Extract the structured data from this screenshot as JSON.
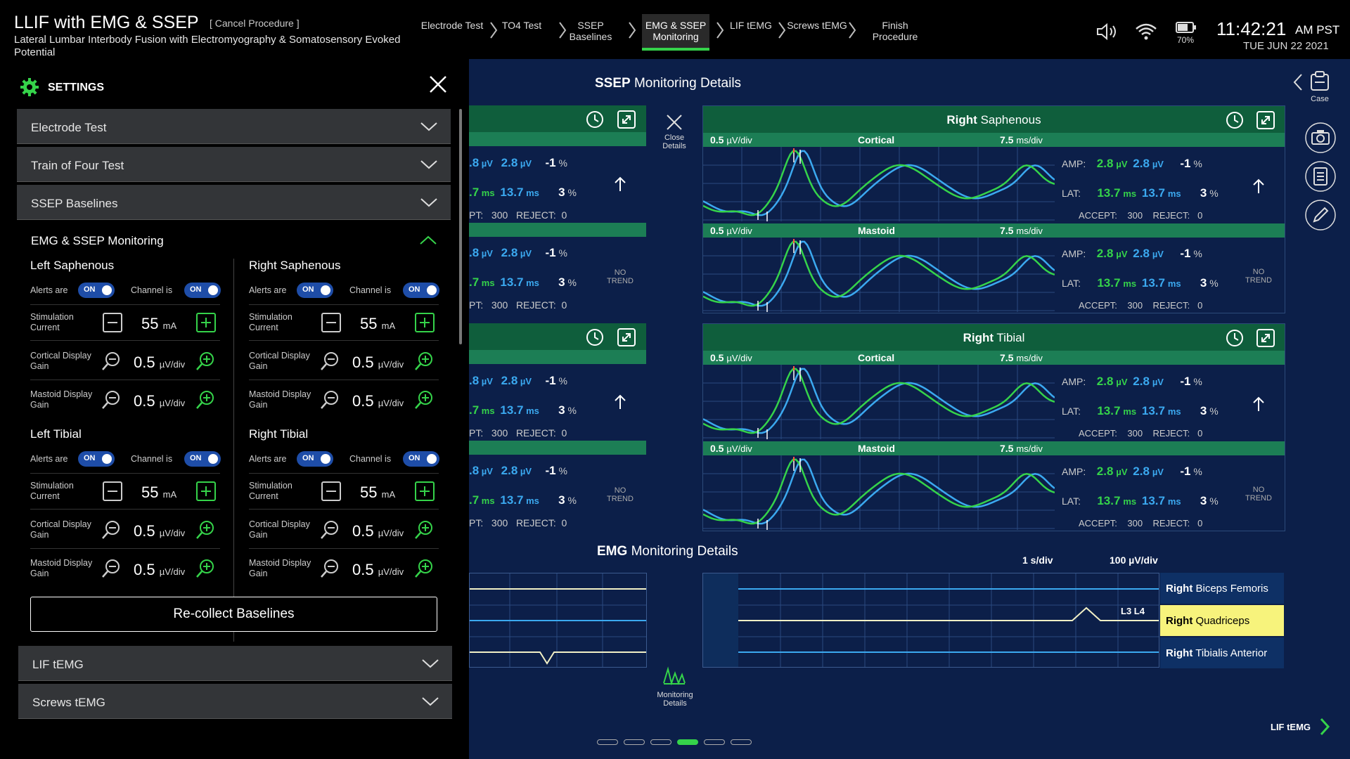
{
  "header": {
    "title": "LLIF with EMG & SSEP",
    "cancel": "[ Cancel Procedure ]",
    "subtitle": "Lateral Lumbar Interbody Fusion with Electromyography & Somatosensory Evoked Potential"
  },
  "steps": [
    {
      "label": "Electrode Test"
    },
    {
      "label": "TO4 Test"
    },
    {
      "label": "SSEP Baselines"
    },
    {
      "label": "EMG & SSEP Monitoring",
      "active": true
    },
    {
      "label": "LIF tEMG"
    },
    {
      "label": "Screws tEMG"
    },
    {
      "label": "Finish Procedure"
    }
  ],
  "status": {
    "battery": "70%",
    "time": "11:42:21",
    "ampm": "AM PST",
    "date": "TUE  JUN 22  2021"
  },
  "settings": {
    "title": "SETTINGS",
    "sections": [
      "Electrode Test",
      "Train of Four Test",
      "SSEP Baselines"
    ],
    "emg_ssep": "EMG & SSEP Monitoring",
    "groups": [
      {
        "title_a": "Left",
        "title_b": "Saphenous"
      },
      {
        "title_a": "Right",
        "title_b": "Saphenous"
      },
      {
        "title_a": "Left",
        "title_b": "Tibial"
      },
      {
        "title_a": "Right",
        "title_b": "Tibial"
      }
    ],
    "alerts_label": "Alerts are",
    "channel_label": "Channel is",
    "toggle_on": "ON",
    "stim_label": "Stimulation Current",
    "stim_value": "55",
    "stim_unit": "mA",
    "cortical_label": "Cortical Display Gain",
    "mastoid_label": "Mastoid Display Gain",
    "gain_value": "0.5",
    "gain_unit": "µV/div",
    "recollect": "Re-collect Baselines",
    "bottom_sections": [
      "LIF tEMG",
      "Screws tEMG"
    ]
  },
  "ssep": {
    "heading_bold": "SSEP",
    "heading": "Monitoring Details",
    "close": "Close Details",
    "panels": [
      {
        "title_a": "Right",
        "title_b": "Saphenous"
      },
      {
        "title_a": "Right",
        "title_b": "Tibial"
      }
    ],
    "scale": "0.5",
    "scale_unit": "µV/div",
    "time": "7.5",
    "time_unit": "ms/div",
    "cortical": "Cortical",
    "mastoid": "Mastoid",
    "amp_label": "AMP:",
    "lat_label": "LAT:",
    "amp1": "2.8",
    "amp2": "2.8",
    "amp_unit": "µV",
    "amp_pct": "-1",
    "lat1": "13.7",
    "lat2": "13.7",
    "lat_unit": "ms",
    "lat_pct": "3",
    "pct": "%",
    "accept_label": "ACCEPT:",
    "accept": "300",
    "reject_label": "REJECT:",
    "reject": "0",
    "left_amp1": ".8",
    "left_lat1": ".7",
    "left_accept_label": "PT:",
    "no_trend": "NO TREND"
  },
  "emg": {
    "heading_bold": "EMG",
    "heading": "Monitoring Details",
    "time_scale": "1 s/div",
    "amp_scale": "100 µV/div",
    "levels": "L3  L4",
    "muscles": [
      {
        "a": "Right",
        "b": "Biceps Femoris"
      },
      {
        "a": "Right",
        "b": "Quadriceps"
      },
      {
        "a": "Right",
        "b": "Tibialis Anterior"
      }
    ],
    "monitoring_details": "Monitoring Details"
  },
  "nav": {
    "case": "Case",
    "next": "LIF tEMG"
  },
  "colors": {
    "accent": "#35d34a",
    "blue_trace": "#3ba9f0",
    "panel_title": "#0f5e3c",
    "panel_bar": "#1c7e55",
    "background": "#0c1f49"
  }
}
